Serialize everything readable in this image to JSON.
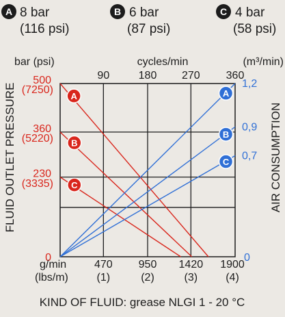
{
  "legend": [
    {
      "badge": "A",
      "bar": "8 bar",
      "psi": "(116 psi)"
    },
    {
      "badge": "B",
      "bar": "6 bar",
      "psi": "(87 psi)"
    },
    {
      "badge": "C",
      "bar": "4 bar",
      "psi": "(58 psi)"
    }
  ],
  "colors": {
    "pressure": "#d9261c",
    "air": "#2f6fd6",
    "grid": "#1c1c1c",
    "background": "#ece9e4"
  },
  "chart_data": {
    "type": "line",
    "left_unit": "bar (psi)",
    "top_unit": "cycles/min",
    "right_unit": "(m³/min)",
    "left_axis_title": "FLUID OUTLET PRESSURE",
    "right_axis_title": "AIR CONSUMPTION",
    "bottom_unit_a": "g/min",
    "bottom_unit_b": "(lbs/m)",
    "footer": "KIND OF FLUID: grease NLGI 1 - 20 °C",
    "x_range": [
      0,
      1900
    ],
    "y_left_range": [
      0,
      500
    ],
    "y_right_range": [
      0,
      1.2
    ],
    "top_ticks": [
      "90",
      "180",
      "270",
      "360"
    ],
    "bottom_ticks": [
      {
        "x": 470,
        "main": "470",
        "sub": "(1)"
      },
      {
        "x": 950,
        "main": "950",
        "sub": "(2)"
      },
      {
        "x": 1420,
        "main": "1420",
        "sub": "(3)"
      },
      {
        "x": 1900,
        "main": "1900",
        "sub": "(4)"
      }
    ],
    "bottom_zero": "0",
    "left_ticks": [
      {
        "y": 500,
        "bar": "500",
        "psi": "(7250)"
      },
      {
        "y": 360,
        "bar": "360",
        "psi": "(5220)"
      },
      {
        "y": 230,
        "bar": "230",
        "psi": "(3335)"
      }
    ],
    "left_zero": "0",
    "right_ticks": [
      {
        "y": 1.2,
        "label": "1,2"
      },
      {
        "y": 0.9,
        "label": "0,9"
      },
      {
        "y": 0.7,
        "label": "0,7"
      }
    ],
    "right_zero": "0",
    "pressure_series": [
      {
        "name": "A",
        "points": [
          [
            0,
            500
          ],
          [
            1610,
            0
          ]
        ]
      },
      {
        "name": "B",
        "points": [
          [
            0,
            360
          ],
          [
            1430,
            0
          ]
        ]
      },
      {
        "name": "C",
        "points": [
          [
            0,
            230
          ],
          [
            1310,
            0
          ]
        ]
      }
    ],
    "air_series": [
      {
        "name": "A",
        "points": [
          [
            0,
            0
          ],
          [
            1900,
            1.2
          ]
        ]
      },
      {
        "name": "B",
        "points": [
          [
            0,
            0
          ],
          [
            1900,
            0.9
          ]
        ]
      },
      {
        "name": "C",
        "points": [
          [
            0,
            0
          ],
          [
            1900,
            0.7
          ]
        ]
      }
    ]
  }
}
